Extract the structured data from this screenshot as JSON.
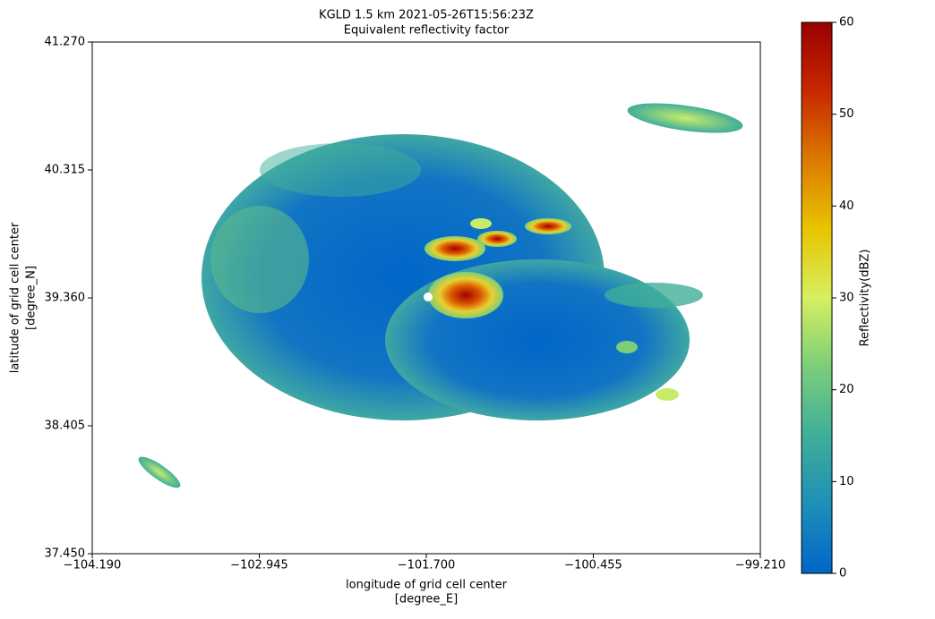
{
  "chart_data": {
    "type": "heatmap",
    "title": [
      "KGLD 1.5 km 2021-05-26T15:56:23Z",
      "Equivalent reflectivity factor"
    ],
    "xlabel": [
      "longitude of grid cell center",
      "[degree_E]"
    ],
    "ylabel": [
      "latitude of grid cell center",
      "[degree_N]"
    ],
    "xlim": [
      -104.19,
      -99.21
    ],
    "xticks": [
      {
        "value": -104.19,
        "label": "−104.190"
      },
      {
        "value": -102.945,
        "label": "−102.945"
      },
      {
        "value": -101.7,
        "label": "−101.700"
      },
      {
        "value": -100.455,
        "label": "−100.455"
      },
      {
        "value": -99.21,
        "label": "−99.210"
      }
    ],
    "ylim": [
      37.45,
      41.27
    ],
    "yticks": [
      {
        "value": 37.45,
        "label": "37.450"
      },
      38.405,
      {
        "value": 39.36,
        "label": "39.360"
      },
      40.315,
      {
        "value": 41.27,
        "label": "41.270"
      }
    ],
    "colorbar": {
      "label": "Reflectivity(dBZ)",
      "lim": [
        0,
        60
      ],
      "ticks": [
        0,
        10,
        20,
        30,
        40,
        50,
        60
      ],
      "colormap": [
        "#0066c8",
        "#1e8fb8",
        "#3fae9a",
        "#7ccd7a",
        "#d6f060",
        "#e8c400",
        "#dc7a00",
        "#c82800",
        "#9a0000"
      ]
    }
  }
}
